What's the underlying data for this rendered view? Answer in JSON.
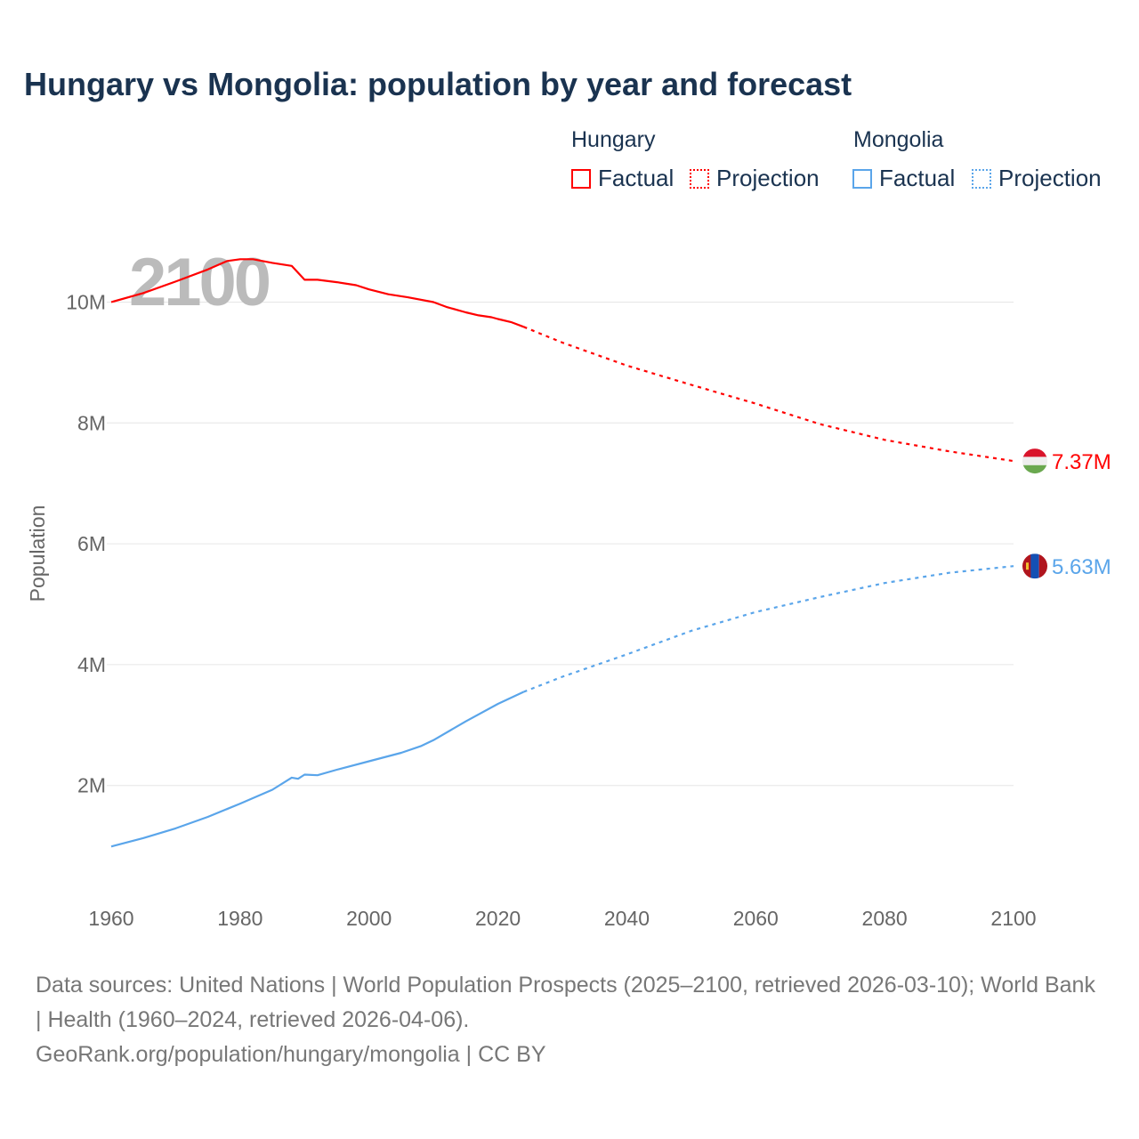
{
  "chart_data": {
    "type": "line",
    "title": "Hungary vs Mongolia: population by year and forecast",
    "xlabel": "",
    "ylabel": "Population",
    "xlim": [
      1960,
      2100
    ],
    "ylim": [
      0,
      11000000
    ],
    "x_ticks": [
      "1960",
      "1980",
      "2000",
      "2020",
      "2040",
      "2060",
      "2080",
      "2100"
    ],
    "y_ticks": [
      {
        "v": 2000000,
        "label": "2M"
      },
      {
        "v": 4000000,
        "label": "4M"
      },
      {
        "v": 6000000,
        "label": "6M"
      },
      {
        "v": 8000000,
        "label": "8M"
      },
      {
        "v": 10000000,
        "label": "10M"
      }
    ],
    "year_watermark": "2100",
    "legend_placement": "top-right",
    "series": [
      {
        "name": "Hungary",
        "color": "#ff0000",
        "end_label": "7.37M",
        "flag": "hungary-flag",
        "factual": {
          "label": "Factual",
          "x": [
            1960,
            1965,
            1970,
            1975,
            1978,
            1980,
            1982,
            1985,
            1988,
            1990,
            1992,
            1995,
            1998,
            2000,
            2003,
            2006,
            2010,
            2012,
            2015,
            2017,
            2019,
            2020,
            2022,
            2024
          ],
          "y": [
            10.0,
            10.15,
            10.34,
            10.54,
            10.68,
            10.71,
            10.71,
            10.65,
            10.6,
            10.37,
            10.37,
            10.33,
            10.28,
            10.21,
            10.13,
            10.08,
            10.0,
            9.92,
            9.83,
            9.78,
            9.75,
            9.72,
            9.67,
            9.59
          ]
        },
        "projection": {
          "label": "Projection",
          "x": [
            2024,
            2030,
            2040,
            2050,
            2060,
            2070,
            2080,
            2090,
            2100
          ],
          "y": [
            9.59,
            9.33,
            8.95,
            8.63,
            8.32,
            7.98,
            7.72,
            7.53,
            7.37
          ]
        }
      },
      {
        "name": "Mongolia",
        "color": "#5aa5ea",
        "end_label": "5.63M",
        "flag": "mongolia-flag",
        "factual": {
          "label": "Factual",
          "x": [
            1960,
            1965,
            1970,
            1975,
            1980,
            1985,
            1988,
            1989,
            1990,
            1992,
            1995,
            2000,
            2005,
            2008,
            2010,
            2015,
            2020,
            2024
          ],
          "y": [
            0.99,
            1.13,
            1.29,
            1.48,
            1.7,
            1.93,
            2.13,
            2.11,
            2.18,
            2.17,
            2.26,
            2.4,
            2.54,
            2.65,
            2.75,
            3.06,
            3.35,
            3.55
          ]
        },
        "projection": {
          "label": "Projection",
          "x": [
            2024,
            2030,
            2040,
            2050,
            2060,
            2070,
            2080,
            2090,
            2100
          ],
          "y": [
            3.55,
            3.8,
            4.17,
            4.56,
            4.87,
            5.12,
            5.35,
            5.52,
            5.63
          ]
        }
      }
    ]
  },
  "legend": {
    "groups": [
      {
        "name": "Hungary",
        "factual": "Factual",
        "projection": "Projection"
      },
      {
        "name": "Mongolia",
        "factual": "Factual",
        "projection": "Projection"
      }
    ]
  },
  "footer": {
    "sources": "Data sources: United Nations | World Population Prospects (2025–2100, retrieved 2026-03-10); World Bank | Health (1960–2024, retrieved 2026-04-06).",
    "credit": "GeoRank.org/population/hungary/mongolia | CC BY"
  }
}
